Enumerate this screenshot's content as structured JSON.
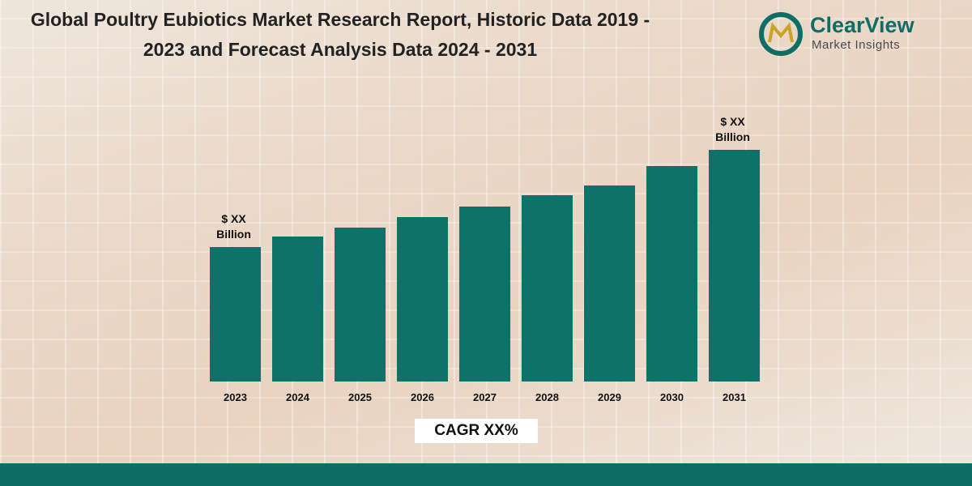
{
  "chart_data": {
    "type": "bar",
    "title": "Global Poultry Eubiotics Market Research Report, Historic Data 2019 - 2023 and Forecast Analysis Data 2024 - 2031",
    "categories": [
      "2023",
      "2024",
      "2025",
      "2026",
      "2027",
      "2028",
      "2029",
      "2030",
      "2031"
    ],
    "values": [
      166,
      179,
      190,
      203,
      216,
      230,
      242,
      266,
      286
    ],
    "color": "#0e7269",
    "ylim": [
      0,
      300
    ],
    "annotations": [
      "$ XX Billion",
      "$ XX Billion"
    ],
    "subtitle": "CAGR XX%"
  },
  "brand": {
    "name": "ClearView",
    "tagline": "Market Insights"
  }
}
